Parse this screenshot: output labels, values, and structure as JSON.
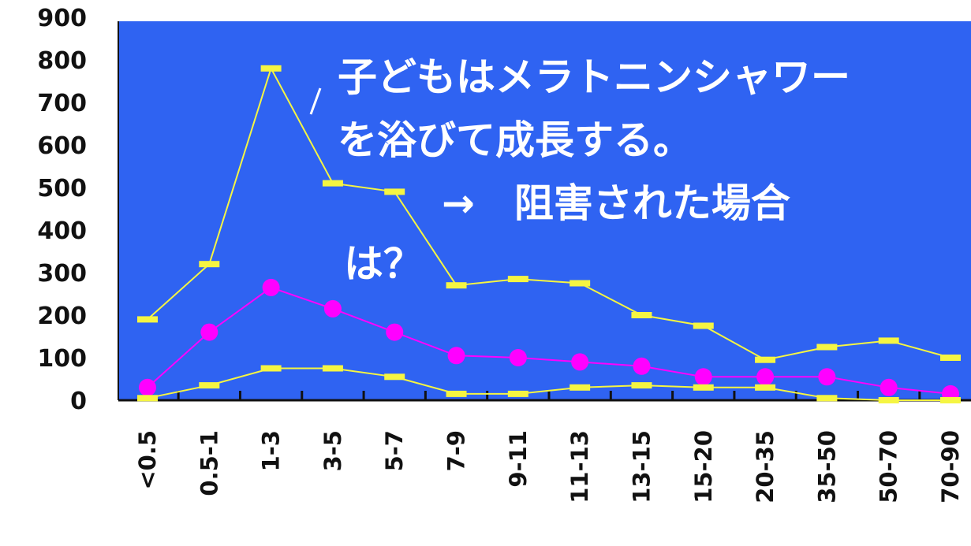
{
  "chart_data": {
    "type": "line",
    "title": "",
    "xlabel": "",
    "ylabel": "",
    "categories": [
      "<0.5",
      "0.5-1",
      "1-3",
      "3-5",
      "5-7",
      "7-9",
      "9-11",
      "11-13",
      "13-15",
      "15-20",
      "20-35",
      "35-50",
      "50-70",
      "70-90"
    ],
    "y_ticks": [
      "900",
      "800",
      "700",
      "600",
      "500",
      "400",
      "300",
      "200",
      "100",
      "0"
    ],
    "ylim": [
      0,
      900
    ],
    "grid": false,
    "legend": "none",
    "series": [
      {
        "color": "#f5f542",
        "values": [
          190,
          320,
          780,
          510,
          490,
          270,
          285,
          275,
          200,
          175,
          95,
          125,
          140,
          100
        ]
      },
      {
        "color": "#ff00ff",
        "values": [
          30,
          160,
          265,
          215,
          160,
          105,
          100,
          90,
          80,
          55,
          55,
          55,
          30,
          15
        ]
      },
      {
        "color": "#f5f542",
        "values": [
          5,
          35,
          75,
          75,
          55,
          15,
          15,
          30,
          35,
          30,
          30,
          5,
          0,
          0
        ]
      }
    ],
    "annotations": [
      "子どもはメラトニンシャワー",
      "を浴びて成長する。",
      "→　阻害された場合",
      "は？"
    ]
  },
  "colors": {
    "plot_background": "#2f63f2",
    "axis": "#111111"
  }
}
